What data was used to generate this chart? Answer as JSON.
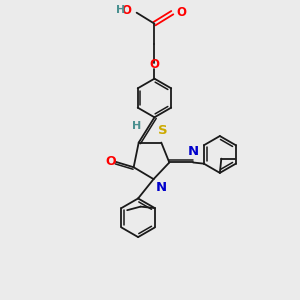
{
  "bg_color": "#ebebeb",
  "atom_colors": {
    "O": "#ff0000",
    "N": "#0000cc",
    "S": "#ccaa00",
    "H_label": "#4a9090",
    "C": "#1a1a1a"
  }
}
